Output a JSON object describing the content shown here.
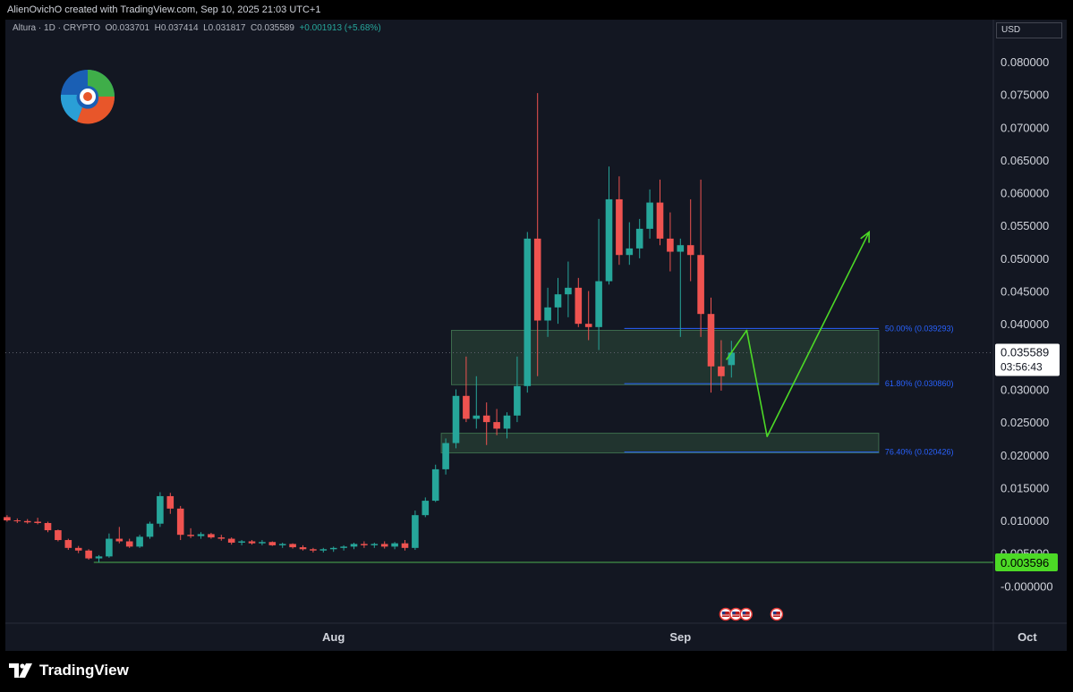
{
  "header": {
    "attribution": "AlienOvichO created with TradingView.com, Sep 10, 2025 21:03 UTC+1"
  },
  "symbol": {
    "name": "Altura · 1D · CRYPTO",
    "open": "O0.033701",
    "high": "H0.037414",
    "low": "L0.031817",
    "close": "C0.035589",
    "change": "+0.001913 (+5.68%)"
  },
  "currency": "USD",
  "branding": {
    "name": "TradingView"
  },
  "colors": {
    "up": "#26a69a",
    "down": "#ef5350",
    "zone_fill": "#2e4d3a",
    "fib_line": "#2962ff",
    "projection": "#4cd926",
    "support_line": "#4caf50",
    "current_price_bg": "#ffffff",
    "support_label_bg": "#4cd926",
    "background": "#131722"
  },
  "chart_data": {
    "type": "candlestick",
    "title": "Altura · 1D · CRYPTO",
    "ylim": [
      -0.002,
      0.0815
    ],
    "y_ticks": [
      "0.080000",
      "0.075000",
      "0.070000",
      "0.065000",
      "0.060000",
      "0.055000",
      "0.050000",
      "0.045000",
      "0.040000",
      "0.035000",
      "0.030000",
      "0.025000",
      "0.020000",
      "0.015000",
      "0.010000",
      "0.005000",
      "-0.000000"
    ],
    "y_tick_values": [
      0.08,
      0.075,
      0.07,
      0.065,
      0.06,
      0.055,
      0.05,
      0.045,
      0.04,
      0.035,
      0.03,
      0.025,
      0.02,
      0.015,
      0.01,
      0.005,
      0.0
    ],
    "x_labels": [
      {
        "label": "Aug",
        "index": 32
      },
      {
        "label": "Sep",
        "index": 66
      },
      {
        "label": "Oct",
        "index": 100
      }
    ],
    "candles": [
      {
        "o": 0.0105,
        "h": 0.0108,
        "l": 0.0098,
        "c": 0.01
      },
      {
        "o": 0.01,
        "h": 0.0103,
        "l": 0.0096,
        "c": 0.0099
      },
      {
        "o": 0.0099,
        "h": 0.0102,
        "l": 0.0095,
        "c": 0.0097
      },
      {
        "o": 0.0098,
        "h": 0.0104,
        "l": 0.0094,
        "c": 0.0096
      },
      {
        "o": 0.0096,
        "h": 0.0098,
        "l": 0.0082,
        "c": 0.0085
      },
      {
        "o": 0.0085,
        "h": 0.0086,
        "l": 0.0068,
        "c": 0.007
      },
      {
        "o": 0.007,
        "h": 0.0072,
        "l": 0.0055,
        "c": 0.0058
      },
      {
        "o": 0.0058,
        "h": 0.0061,
        "l": 0.005,
        "c": 0.0054
      },
      {
        "o": 0.0054,
        "h": 0.0056,
        "l": 0.004,
        "c": 0.0042
      },
      {
        "o": 0.0042,
        "h": 0.0047,
        "l": 0.0036,
        "c": 0.0045
      },
      {
        "o": 0.0045,
        "h": 0.008,
        "l": 0.0043,
        "c": 0.0072
      },
      {
        "o": 0.0072,
        "h": 0.009,
        "l": 0.0065,
        "c": 0.0068
      },
      {
        "o": 0.0068,
        "h": 0.0072,
        "l": 0.0058,
        "c": 0.006
      },
      {
        "o": 0.006,
        "h": 0.0078,
        "l": 0.0058,
        "c": 0.0075
      },
      {
        "o": 0.0075,
        "h": 0.0098,
        "l": 0.0072,
        "c": 0.0095
      },
      {
        "o": 0.0095,
        "h": 0.0143,
        "l": 0.009,
        "c": 0.0137
      },
      {
        "o": 0.0137,
        "h": 0.0142,
        "l": 0.011,
        "c": 0.0118
      },
      {
        "o": 0.0118,
        "h": 0.0122,
        "l": 0.007,
        "c": 0.0078
      },
      {
        "o": 0.0078,
        "h": 0.0088,
        "l": 0.0073,
        "c": 0.0076
      },
      {
        "o": 0.0076,
        "h": 0.0082,
        "l": 0.0072,
        "c": 0.0079
      },
      {
        "o": 0.0079,
        "h": 0.0081,
        "l": 0.0072,
        "c": 0.0074
      },
      {
        "o": 0.0074,
        "h": 0.0078,
        "l": 0.0069,
        "c": 0.0072
      },
      {
        "o": 0.0072,
        "h": 0.0074,
        "l": 0.0063,
        "c": 0.0066
      },
      {
        "o": 0.0066,
        "h": 0.007,
        "l": 0.0062,
        "c": 0.0068
      },
      {
        "o": 0.0068,
        "h": 0.007,
        "l": 0.0063,
        "c": 0.0065
      },
      {
        "o": 0.0065,
        "h": 0.007,
        "l": 0.0062,
        "c": 0.0067
      },
      {
        "o": 0.0067,
        "h": 0.0068,
        "l": 0.0061,
        "c": 0.0062
      },
      {
        "o": 0.0062,
        "h": 0.0066,
        "l": 0.0058,
        "c": 0.0064
      },
      {
        "o": 0.0064,
        "h": 0.0065,
        "l": 0.0057,
        "c": 0.0059
      },
      {
        "o": 0.0059,
        "h": 0.0062,
        "l": 0.0054,
        "c": 0.0056
      },
      {
        "o": 0.0056,
        "h": 0.0058,
        "l": 0.0051,
        "c": 0.0054
      },
      {
        "o": 0.0054,
        "h": 0.0058,
        "l": 0.0051,
        "c": 0.0056
      },
      {
        "o": 0.0056,
        "h": 0.006,
        "l": 0.0052,
        "c": 0.0058
      },
      {
        "o": 0.0058,
        "h": 0.0062,
        "l": 0.0054,
        "c": 0.006
      },
      {
        "o": 0.006,
        "h": 0.0066,
        "l": 0.0056,
        "c": 0.0064
      },
      {
        "o": 0.0064,
        "h": 0.0068,
        "l": 0.0058,
        "c": 0.0062
      },
      {
        "o": 0.0062,
        "h": 0.0066,
        "l": 0.0058,
        "c": 0.0064
      },
      {
        "o": 0.0064,
        "h": 0.0068,
        "l": 0.0057,
        "c": 0.006
      },
      {
        "o": 0.006,
        "h": 0.0067,
        "l": 0.0056,
        "c": 0.0065
      },
      {
        "o": 0.0065,
        "h": 0.007,
        "l": 0.0054,
        "c": 0.0058
      },
      {
        "o": 0.0058,
        "h": 0.0115,
        "l": 0.0055,
        "c": 0.0108
      },
      {
        "o": 0.0108,
        "h": 0.0135,
        "l": 0.0105,
        "c": 0.013
      },
      {
        "o": 0.013,
        "h": 0.0185,
        "l": 0.0128,
        "c": 0.0178
      },
      {
        "o": 0.0178,
        "h": 0.0225,
        "l": 0.017,
        "c": 0.0218
      },
      {
        "o": 0.0218,
        "h": 0.03,
        "l": 0.021,
        "c": 0.029
      },
      {
        "o": 0.029,
        "h": 0.035,
        "l": 0.025,
        "c": 0.0255
      },
      {
        "o": 0.0255,
        "h": 0.032,
        "l": 0.024,
        "c": 0.026
      },
      {
        "o": 0.026,
        "h": 0.028,
        "l": 0.0215,
        "c": 0.025
      },
      {
        "o": 0.025,
        "h": 0.027,
        "l": 0.023,
        "c": 0.024
      },
      {
        "o": 0.024,
        "h": 0.0265,
        "l": 0.0225,
        "c": 0.026
      },
      {
        "o": 0.026,
        "h": 0.035,
        "l": 0.025,
        "c": 0.0305
      },
      {
        "o": 0.0305,
        "h": 0.054,
        "l": 0.0295,
        "c": 0.053
      },
      {
        "o": 0.053,
        "h": 0.0752,
        "l": 0.032,
        "c": 0.0405
      },
      {
        "o": 0.0405,
        "h": 0.0455,
        "l": 0.038,
        "c": 0.0425
      },
      {
        "o": 0.0425,
        "h": 0.047,
        "l": 0.04,
        "c": 0.0445
      },
      {
        "o": 0.0445,
        "h": 0.0495,
        "l": 0.041,
        "c": 0.0455
      },
      {
        "o": 0.0455,
        "h": 0.047,
        "l": 0.0395,
        "c": 0.04
      },
      {
        "o": 0.04,
        "h": 0.045,
        "l": 0.0375,
        "c": 0.0395
      },
      {
        "o": 0.0395,
        "h": 0.056,
        "l": 0.036,
        "c": 0.0465
      },
      {
        "o": 0.0465,
        "h": 0.064,
        "l": 0.046,
        "c": 0.059
      },
      {
        "o": 0.059,
        "h": 0.0625,
        "l": 0.049,
        "c": 0.0505
      },
      {
        "o": 0.0505,
        "h": 0.0555,
        "l": 0.049,
        "c": 0.0515
      },
      {
        "o": 0.0515,
        "h": 0.056,
        "l": 0.05,
        "c": 0.0545
      },
      {
        "o": 0.0545,
        "h": 0.0605,
        "l": 0.053,
        "c": 0.0585
      },
      {
        "o": 0.0585,
        "h": 0.062,
        "l": 0.052,
        "c": 0.053
      },
      {
        "o": 0.053,
        "h": 0.057,
        "l": 0.048,
        "c": 0.051
      },
      {
        "o": 0.051,
        "h": 0.053,
        "l": 0.038,
        "c": 0.052
      },
      {
        "o": 0.052,
        "h": 0.059,
        "l": 0.0465,
        "c": 0.0505
      },
      {
        "o": 0.0505,
        "h": 0.062,
        "l": 0.038,
        "c": 0.0415
      },
      {
        "o": 0.0415,
        "h": 0.044,
        "l": 0.0295,
        "c": 0.0335
      },
      {
        "o": 0.0335,
        "h": 0.0375,
        "l": 0.0298,
        "c": 0.032
      },
      {
        "o": 0.0337,
        "h": 0.0374,
        "l": 0.0318,
        "c": 0.0356
      }
    ],
    "fib_levels": [
      {
        "label": "50.00% (0.039293)",
        "value": 0.039293
      },
      {
        "label": "61.80% (0.030860)",
        "value": 0.03086
      },
      {
        "label": "76.40% (0.020426)",
        "value": 0.020426
      }
    ],
    "zones": [
      {
        "from_index": 44,
        "to_index": 85,
        "top": 0.039,
        "bottom": 0.0307
      },
      {
        "from_index": 43,
        "to_index": 85,
        "top": 0.0233,
        "bottom": 0.0203
      }
    ],
    "projection_path": [
      {
        "index": 70.5,
        "value": 0.0345
      },
      {
        "index": 72.5,
        "value": 0.039
      },
      {
        "index": 74.5,
        "value": 0.0228
      },
      {
        "index": 84.5,
        "value": 0.054
      }
    ],
    "support_line": {
      "from_index": 8.5,
      "value": 0.003596
    },
    "current_price": {
      "value": "0.035589",
      "countdown": "03:56:43",
      "level": 0.035589
    },
    "support_label": {
      "value": "0.003596"
    },
    "event_markers": [
      {
        "index": 70
      },
      {
        "index": 71
      },
      {
        "index": 72
      },
      {
        "index": 75
      }
    ]
  }
}
